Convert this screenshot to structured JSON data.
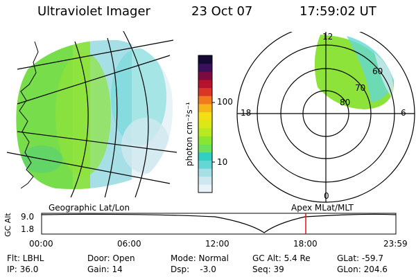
{
  "header": {
    "instrument": "Ultraviolet Imager",
    "date": "23 Oct 07",
    "time": "17:59:02 UT"
  },
  "colorbar": {
    "label": "photon cm⁻²s⁻¹",
    "tick_100": "100",
    "tick_10": "10",
    "scale": "log",
    "colors": [
      "#e8f3f8",
      "#cfe8ef",
      "#a7dfe7",
      "#63d7d4",
      "#2fcfc4",
      "#6be05a",
      "#88e531",
      "#b6ea20",
      "#dbe716",
      "#f2df14",
      "#f7b617",
      "#ef7b1e",
      "#d93627",
      "#b5122b",
      "#7a0a40",
      "#3a0f5b",
      "#140a35"
    ]
  },
  "geo_map": {
    "label": "Geographic Lat/Lon"
  },
  "polar_plot": {
    "label": "Apex MLat/MLT",
    "mlt_labels": {
      "top": "12",
      "left": "18",
      "right": "6",
      "bottom": "0"
    },
    "lat_labels": [
      "60",
      "70",
      "80"
    ]
  },
  "altitude_plot": {
    "y_axis_label": "GC Alt",
    "y_ticks": [
      "9.0",
      "1.8"
    ],
    "x_ticks": [
      "00:00",
      "06:00",
      "12:00",
      "18:00",
      "23:59"
    ],
    "marker_time": "18:00",
    "marker_color": "#e01010"
  },
  "status": {
    "filter": "Flt: LBHL",
    "ip": "IP: 36.0",
    "door": "Door: Open",
    "gain": "Gain: 14",
    "mode": "Mode: Normal",
    "dsp": "Dsp:    -3.0",
    "gc_alt": "GC Alt: 5.4 Re",
    "seq": "Seq: 39",
    "glat": "GLat: -59.7",
    "glon": "GLon: 204.6"
  }
}
